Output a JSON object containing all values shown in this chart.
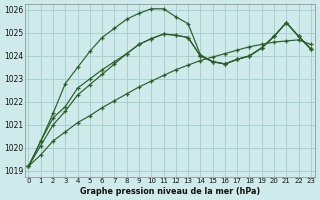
{
  "title": "Graphe pression niveau de la mer (hPa)",
  "bg_color": "#ceeaea",
  "grid_color": "#a8d0d0",
  "line_color": "#2a5f2a",
  "x_min": 0,
  "x_max": 23,
  "y_min": 1019,
  "y_max": 1026,
  "x_ticks": [
    0,
    1,
    2,
    3,
    4,
    5,
    6,
    7,
    8,
    9,
    10,
    11,
    12,
    13,
    14,
    15,
    16,
    17,
    18,
    19,
    20,
    21,
    22,
    23
  ],
  "y_ticks": [
    1019,
    1020,
    1021,
    1022,
    1023,
    1024,
    1025,
    1026
  ],
  "line_linear": [
    1019.2,
    1019.7,
    1020.3,
    1020.7,
    1021.1,
    1021.4,
    1021.75,
    1022.05,
    1022.35,
    1022.65,
    1022.9,
    1023.15,
    1023.4,
    1023.6,
    1023.8,
    1023.95,
    1024.1,
    1024.25,
    1024.4,
    1024.5,
    1024.6,
    1024.65,
    1024.7,
    1024.5
  ],
  "line_arc": [
    1019.2,
    1020.3,
    1021.5,
    1022.8,
    1023.5,
    1024.2,
    1024.8,
    1025.2,
    1025.6,
    1025.85,
    1026.05,
    1026.05,
    1025.7,
    1025.4,
    1024.05,
    1023.75,
    1023.65,
    1023.85,
    1024.0,
    1024.35,
    1024.85,
    1025.45,
    1024.85,
    1024.3
  ],
  "line_mid1": [
    1019.2,
    1020.1,
    1021.0,
    1021.6,
    1022.3,
    1022.75,
    1023.2,
    1023.65,
    1024.1,
    1024.5,
    1024.75,
    1024.95,
    1024.9,
    1024.8,
    1024.0,
    1023.75,
    1023.65,
    1023.85,
    1024.0,
    1024.35,
    1024.85,
    1025.45,
    1024.85,
    1024.3
  ],
  "line_mid2": [
    1019.2,
    1020.3,
    1021.3,
    1021.8,
    1022.6,
    1023.0,
    1023.4,
    1023.75,
    1024.1,
    1024.5,
    1024.75,
    1024.95,
    1024.9,
    1024.8,
    1024.0,
    1023.75,
    1023.65,
    1023.85,
    1024.0,
    1024.35,
    1024.85,
    1025.45,
    1024.85,
    1024.3
  ]
}
